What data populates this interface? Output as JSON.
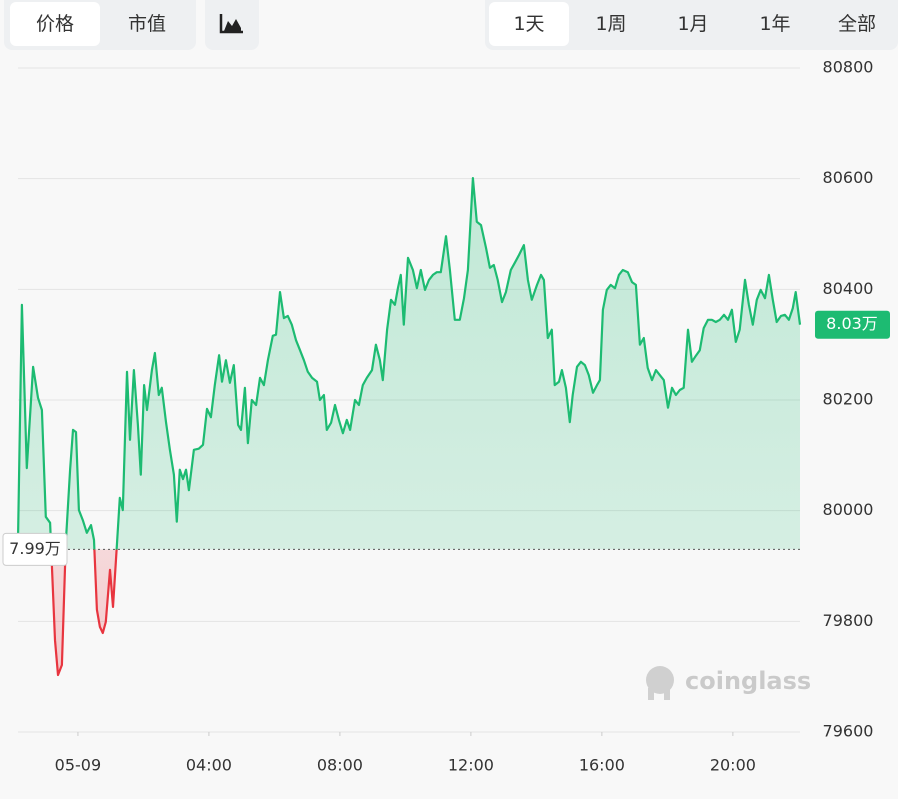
{
  "ui": {
    "tabs": [
      "价格",
      "市值"
    ],
    "periods": [
      "1天",
      "1周",
      "1月",
      "1年",
      "全部"
    ],
    "watermark": "coinglass"
  },
  "chart_data": {
    "type": "area",
    "grid": true,
    "x": [
      -1.83,
      -1.71,
      -1.56,
      -1.37,
      -1.22,
      -1.1,
      -0.98,
      -0.85,
      -0.7,
      -0.61,
      -0.49,
      -0.37,
      -0.24,
      -0.15,
      -0.06,
      0.03,
      0.15,
      0.27,
      0.4,
      0.49,
      0.58,
      0.67,
      0.76,
      0.85,
      0.98,
      1.07,
      1.19,
      1.28,
      1.37,
      1.5,
      1.59,
      1.71,
      1.83,
      1.92,
      2.02,
      2.11,
      2.26,
      2.35,
      2.47,
      2.56,
      2.69,
      2.81,
      2.93,
      3.02,
      3.11,
      3.21,
      3.3,
      3.39,
      3.54,
      3.69,
      3.82,
      3.94,
      4.06,
      4.18,
      4.31,
      4.4,
      4.52,
      4.64,
      4.76,
      4.89,
      4.98,
      5.1,
      5.19,
      5.31,
      5.44,
      5.56,
      5.68,
      5.8,
      5.95,
      6.05,
      6.17,
      6.29,
      6.41,
      6.53,
      6.66,
      6.78,
      6.9,
      7.02,
      7.15,
      7.3,
      7.39,
      7.51,
      7.6,
      7.73,
      7.85,
      7.97,
      8.09,
      8.21,
      8.31,
      8.46,
      8.58,
      8.7,
      8.82,
      8.98,
      9.1,
      9.22,
      9.31,
      9.44,
      9.56,
      9.68,
      9.77,
      9.86,
      9.95,
      10.08,
      10.23,
      10.35,
      10.47,
      10.6,
      10.72,
      10.84,
      10.96,
      11.08,
      11.24,
      11.36,
      11.51,
      11.66,
      11.79,
      11.91,
      12.06,
      12.18,
      12.31,
      12.46,
      12.58,
      12.7,
      12.82,
      12.95,
      13.07,
      13.22,
      13.34,
      13.47,
      13.62,
      13.74,
      13.86,
      14.02,
      14.14,
      14.23,
      14.35,
      14.47,
      14.56,
      14.69,
      14.78,
      14.9,
      15.02,
      15.11,
      15.24,
      15.36,
      15.48,
      15.6,
      15.73,
      15.85,
      15.94,
      16.03,
      16.15,
      16.27,
      16.4,
      16.52,
      16.64,
      16.79,
      16.92,
      17.04,
      17.16,
      17.28,
      17.4,
      17.53,
      17.65,
      17.77,
      17.89,
      18.02,
      18.14,
      18.26,
      18.38,
      18.5,
      18.63,
      18.75,
      18.87,
      18.99,
      19.11,
      19.24,
      19.36,
      19.48,
      19.6,
      19.73,
      19.85,
      19.97,
      20.09,
      20.21,
      20.37,
      20.49,
      20.61,
      20.73,
      20.85,
      20.98,
      21.1,
      21.22,
      21.34,
      21.47,
      21.59,
      21.71,
      21.83,
      21.92,
      22.05
    ],
    "series": [
      {
        "color": "#1dbb72",
        "negative_color": "#e8353f",
        "values": [
          79947,
          80372,
          80077,
          80260,
          80204,
          80182,
          79989,
          79978,
          79766,
          79703,
          79721,
          79942,
          80074,
          80146,
          80142,
          80001,
          79983,
          79960,
          79974,
          79947,
          79821,
          79790,
          79779,
          79799,
          79893,
          79826,
          79938,
          80023,
          80001,
          80251,
          80128,
          80254,
          80155,
          80065,
          80227,
          80182,
          80254,
          80285,
          80209,
          80222,
          80160,
          80110,
          80065,
          79980,
          80074,
          80057,
          80074,
          80037,
          80110,
          80112,
          80119,
          80184,
          80169,
          80227,
          80281,
          80233,
          80272,
          80231,
          80263,
          80155,
          80146,
          80222,
          80122,
          80200,
          80191,
          80240,
          80227,
          80272,
          80316,
          80318,
          80395,
          80348,
          80352,
          80336,
          80308,
          80290,
          80272,
          80251,
          80240,
          80233,
          80200,
          80209,
          80146,
          80159,
          80191,
          80164,
          80140,
          80164,
          80146,
          80200,
          80191,
          80227,
          80240,
          80254,
          80300,
          80272,
          80236,
          80327,
          80381,
          80372,
          80402,
          80426,
          80336,
          80457,
          80435,
          80402,
          80435,
          80399,
          80417,
          80426,
          80431,
          80431,
          80496,
          80435,
          80345,
          80345,
          80384,
          80435,
          80601,
          80522,
          80516,
          80475,
          80439,
          80444,
          80417,
          80377,
          80395,
          80435,
          80448,
          80462,
          80480,
          80417,
          80381,
          80408,
          80426,
          80417,
          80312,
          80327,
          80227,
          80233,
          80254,
          80222,
          80160,
          80209,
          80260,
          80269,
          80263,
          80245,
          80213,
          80227,
          80236,
          80363,
          80399,
          80408,
          80402,
          80426,
          80435,
          80431,
          80413,
          80408,
          80300,
          80312,
          80258,
          80236,
          80254,
          80245,
          80236,
          80186,
          80222,
          80209,
          80218,
          80222,
          80327,
          80269,
          80280,
          80290,
          80330,
          80345,
          80345,
          80341,
          80345,
          80354,
          80345,
          80363,
          80305,
          80327,
          80417,
          80372,
          80336,
          80381,
          80399,
          80384,
          80426,
          80381,
          80341,
          80352,
          80354,
          80345,
          80366,
          80395,
          80336
        ]
      }
    ],
    "baseline": {
      "value": 79930,
      "label": "7.99万"
    },
    "last_price": {
      "value": 80336,
      "label": "8.03万"
    },
    "xlim": [
      -1.83,
      22.05
    ],
    "xticks": [
      {
        "value": 0,
        "label": "05-09"
      },
      {
        "value": 4,
        "label": "04:00"
      },
      {
        "value": 8,
        "label": "08:00"
      },
      {
        "value": 12,
        "label": "12:00"
      },
      {
        "value": 16,
        "label": "16:00"
      },
      {
        "value": 20,
        "label": "20:00"
      }
    ],
    "ylim": [
      79600,
      80800
    ],
    "yticks": [
      79600,
      79800,
      80000,
      80200,
      80400,
      80600,
      80800
    ]
  }
}
